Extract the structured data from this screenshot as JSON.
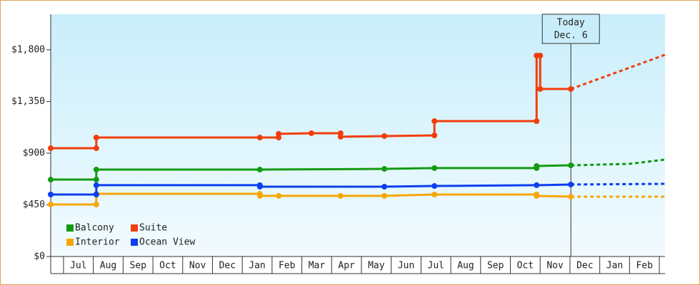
{
  "chart_data": {
    "type": "line",
    "xlim": [
      -0.43,
      20.19
    ],
    "ylim": [
      0,
      2110
    ],
    "yticks": [
      {
        "value": 0,
        "label": "$0"
      },
      {
        "value": 450,
        "label": "$450"
      },
      {
        "value": 900,
        "label": "$900"
      },
      {
        "value": 1350,
        "label": "$1,350"
      },
      {
        "value": 1800,
        "label": "$1,800"
      }
    ],
    "xticks": [
      {
        "value": 0.5,
        "label": "Jul"
      },
      {
        "value": 1.5,
        "label": "Aug"
      },
      {
        "value": 2.5,
        "label": "Sep"
      },
      {
        "value": 3.5,
        "label": "Oct"
      },
      {
        "value": 4.5,
        "label": "Nov"
      },
      {
        "value": 5.5,
        "label": "Dec"
      },
      {
        "value": 6.5,
        "label": "Jan"
      },
      {
        "value": 7.5,
        "label": "Feb"
      },
      {
        "value": 8.5,
        "label": "Mar"
      },
      {
        "value": 9.5,
        "label": "Apr"
      },
      {
        "value": 10.5,
        "label": "May"
      },
      {
        "value": 11.5,
        "label": "Jun"
      },
      {
        "value": 12.5,
        "label": "Jul"
      },
      {
        "value": 13.5,
        "label": "Aug"
      },
      {
        "value": 14.5,
        "label": "Sep"
      },
      {
        "value": 15.5,
        "label": "Oct"
      },
      {
        "value": 16.5,
        "label": "Nov"
      },
      {
        "value": 17.5,
        "label": "Dec"
      },
      {
        "value": 18.5,
        "label": "Jan"
      },
      {
        "value": 19.5,
        "label": "Feb"
      }
    ],
    "today": {
      "x": 17.03,
      "label": [
        "Today",
        "Dec. 6"
      ]
    },
    "legend": "lower left",
    "series": [
      {
        "name": "Balcony",
        "color": "#139a13",
        "x": [
          -0.43,
          1.1,
          1.1,
          6.59,
          10.77,
          12.45,
          15.88,
          15.88,
          17.03
        ],
        "values": [
          670,
          670,
          757,
          757,
          763,
          770,
          770,
          788,
          794
        ],
        "forecast_x": [
          17.03,
          19.0,
          20.19
        ],
        "forecast_values": [
          794,
          807,
          844
        ]
      },
      {
        "name": "Suite",
        "color": "#f23d0c",
        "x": [
          -0.43,
          1.1,
          1.1,
          6.59,
          7.22,
          7.22,
          8.32,
          9.3,
          9.3,
          10.77,
          12.45,
          12.45,
          15.88,
          15.88,
          16.0,
          16.0,
          17.03
        ],
        "values": [
          943,
          943,
          1036,
          1036,
          1036,
          1068,
          1074,
          1074,
          1043,
          1049,
          1055,
          1179,
          1179,
          1750,
          1750,
          1459,
          1459
        ],
        "forecast_x": [
          17.03,
          20.19
        ],
        "forecast_values": [
          1459,
          1757
        ]
      },
      {
        "name": "Interior",
        "color": "#f7a60a",
        "x": [
          -0.43,
          1.1,
          1.1,
          6.59,
          6.59,
          7.22,
          9.3,
          10.77,
          12.45,
          15.88,
          15.88,
          17.03
        ],
        "values": [
          453,
          453,
          546,
          546,
          528,
          528,
          528,
          528,
          540,
          540,
          528,
          521
        ],
        "forecast_x": [
          17.03,
          20.19
        ],
        "forecast_values": [
          521,
          521
        ]
      },
      {
        "name": "Ocean View",
        "color": "#0c3ff2",
        "x": [
          -0.43,
          1.1,
          1.1,
          6.59,
          6.59,
          10.77,
          12.45,
          15.88,
          17.03
        ],
        "values": [
          540,
          540,
          621,
          621,
          608,
          608,
          614,
          621,
          627
        ],
        "forecast_x": [
          17.03,
          20.19
        ],
        "forecast_values": [
          627,
          633
        ]
      }
    ]
  }
}
